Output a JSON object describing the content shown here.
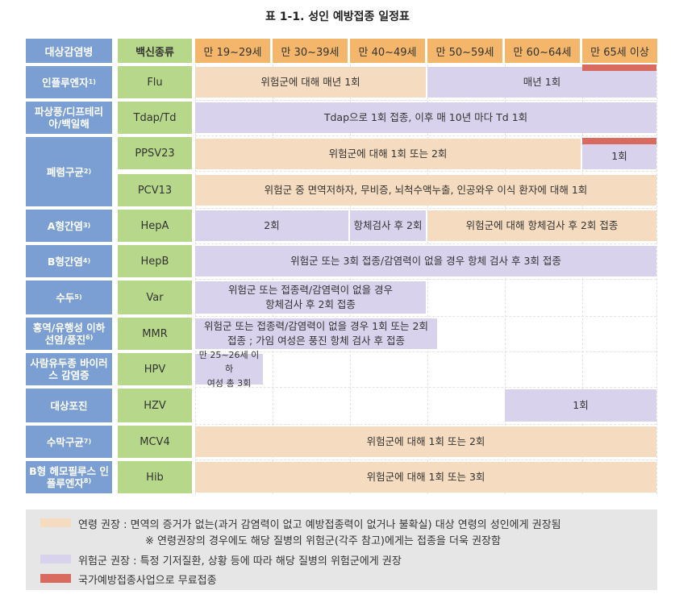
{
  "title": "표 1-1. 성인 예방접종 일정표",
  "header": {
    "disease": "대상감염병",
    "vaccine": "백신종류",
    "ages": [
      "만 19~29세",
      "만 30~39세",
      "만 40~49세",
      "만 50~59세",
      "만 60~64세",
      "만 65세 이상"
    ]
  },
  "rows": [
    {
      "disease": "인플루엔자",
      "note": "1)",
      "vaccine": "Flu"
    },
    {
      "disease": "파상풍/디프테리아/백일해",
      "vaccine": "Tdap/Td"
    },
    {
      "disease": "폐렴구균",
      "note": "2)",
      "vaccine": "PPSV23"
    },
    {
      "vaccine": "PCV13"
    },
    {
      "disease": "A형간염",
      "note": "3)",
      "vaccine": "HepA"
    },
    {
      "disease": "B형간염",
      "note": "4)",
      "vaccine": "HepB"
    },
    {
      "disease": "수두",
      "note": "5)",
      "vaccine": "Var"
    },
    {
      "disease": "홍역/유행성 이하선염/풍진",
      "note": "6)",
      "vaccine": "MMR"
    },
    {
      "disease": "사람유두종 바이러스 감염증",
      "vaccine": "HPV"
    },
    {
      "disease": "대상포진",
      "vaccine": "HZV"
    },
    {
      "disease": "수막구균",
      "note": "7)",
      "vaccine": "MCV4"
    },
    {
      "disease": "B형 헤모필루스 인플루엔자",
      "note": "8)",
      "vaccine": "Hib"
    }
  ],
  "bars": {
    "flu_age": "위험군에 대해 매년 1회",
    "flu_65": "매년 1회",
    "tdap": "Tdap으로 1회 접종, 이후 매 10년 마다 Td 1회",
    "ppsv_age": "위험군에 대해 1회 또는 2회",
    "ppsv_65": "1회",
    "pcv": "위험군 중 면역저하자, 무비증, 뇌척수액누출, 인공와우 이식 환자에 대해 1회",
    "hepa_1": "2회",
    "hepa_2": "항체검사 후 2회",
    "hepa_3": "위험군에 대해 항체검사 후 2회 접종",
    "hepb": "위험군 또는 3회 접종/감염력이 없을 경우 항체 검사 후 3회 접종",
    "var_line1": "위험군 또는 접종력/감염력이 없을 경우",
    "var_line2": "항체검사 후 2회 접종",
    "mmr_line1": "위험군 또는 접종력/감염력이 없을 경우 1회 또는 2회",
    "mmr_line2": "접종 ; 가임 여성은 풍진 항체 검사 후 접종",
    "hpv_line1": "만 25~26세 이하",
    "hpv_line2": "여성 총 3회",
    "hzv": "1회",
    "mcv4": "위험군에 대해 1회 또는 2회",
    "hib": "위험군에 대해 1회 또는 3회"
  },
  "legend": {
    "age_rec": "연령 권장 : 면역의 증거가 없는(과거 감염력이 없고 예방접종력이 없거나 불확실) 대상 연령의 성인에게 권장됨",
    "age_note": "※ 연령권장의 경우에도 해당 질병의 위험군(각주 참고)에게는 접종을 더욱 권장함",
    "risk_rec": "위험군 권장 : 특정 기저질환, 상황 등에 따라 해당 질병의 위험군에게 권장",
    "free": "국가예방접종사업으로 무료접종"
  },
  "colors": {
    "age_bar": "#f5dbbf",
    "risk_bar": "#d8d2ec",
    "free_bar": "#d86a5f",
    "disease_header": "#7b9fd3",
    "vaccine_header": "#b7d88a",
    "age_header": "#f3b66a"
  }
}
